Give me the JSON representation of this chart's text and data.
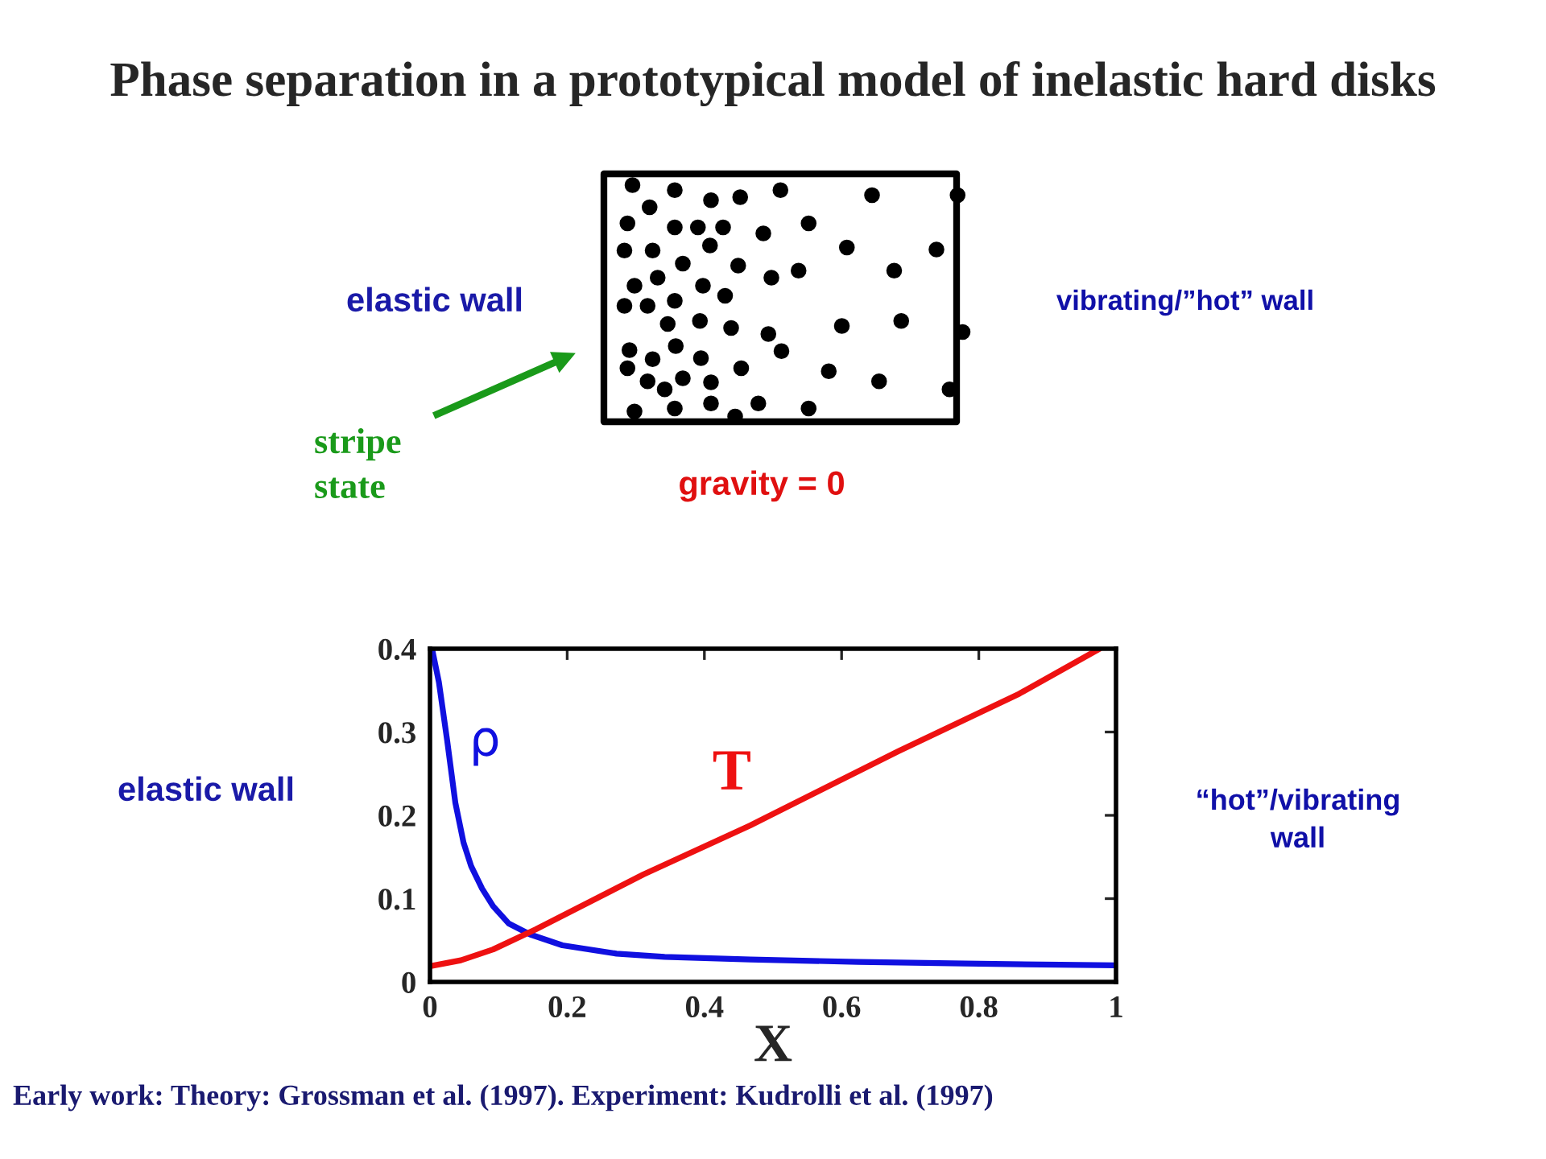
{
  "chart_data": {
    "type": "line",
    "title": "Phase separation in a prototypical model of inelastic hard disks",
    "xlabel": "X",
    "xlim": [
      0,
      1
    ],
    "xticks": [
      0,
      0.2,
      0.4,
      0.6,
      0.8,
      1
    ],
    "ylim": [
      0,
      0.4
    ],
    "yticks": [
      0,
      0.1,
      0.2,
      0.3,
      0.4
    ],
    "grid": false,
    "legend": false,
    "series": [
      {
        "name": "ρ",
        "color": "#1010e0",
        "x": [
          0.003,
          0.013,
          0.025,
          0.037,
          0.049,
          0.06,
          0.076,
          0.092,
          0.115,
          0.146,
          0.193,
          0.272,
          0.342,
          0.467,
          0.624,
          0.78,
          1.0
        ],
        "values": [
          0.4,
          0.36,
          0.29,
          0.215,
          0.167,
          0.139,
          0.112,
          0.091,
          0.07,
          0.057,
          0.044,
          0.034,
          0.03,
          0.027,
          0.024,
          0.022,
          0.02
        ]
      },
      {
        "name": "T",
        "color": "#ee1111",
        "x": [
          0,
          0.045,
          0.092,
          0.154,
          0.311,
          0.467,
          0.683,
          0.859,
          0.976
        ],
        "values": [
          0.019,
          0.026,
          0.039,
          0.063,
          0.129,
          0.188,
          0.277,
          0.346,
          0.4
        ]
      }
    ],
    "annotations": [
      "elastic wall",
      "vibrating/”hot” wall",
      "stripe state",
      "gravity = 0",
      "elastic wall",
      "“hot”/vibrating wall",
      "Early work: Theory: Grossman et al. (1997). Experiment: Kudrolli et al. (1997)"
    ]
  }
}
